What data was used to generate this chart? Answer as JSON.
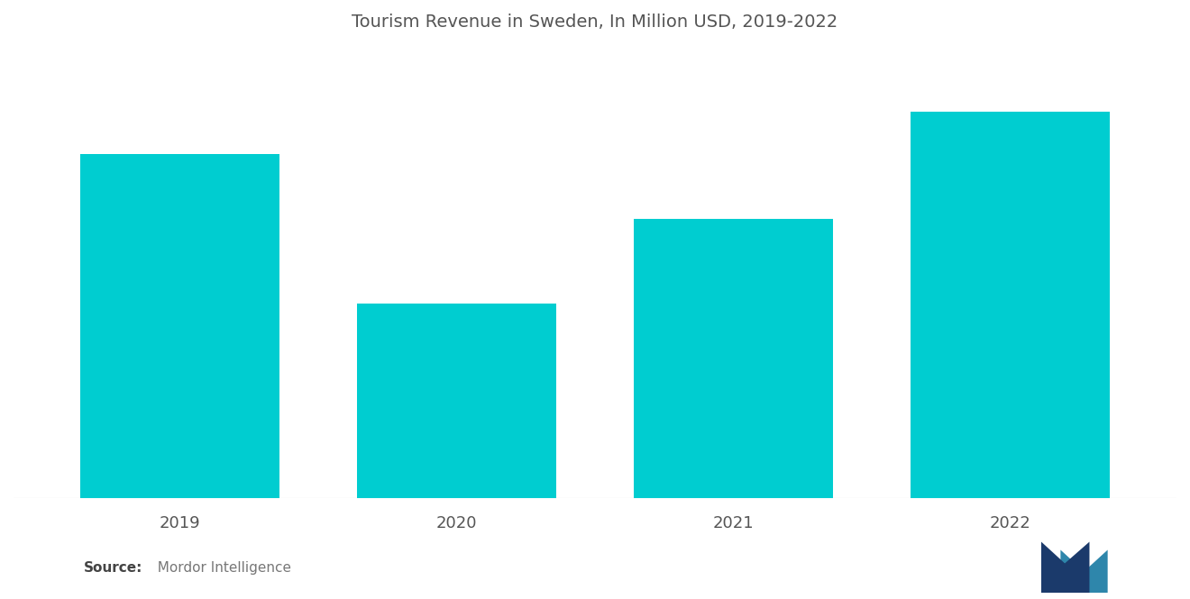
{
  "title": "Tourism Revenue in Sweden, In Million USD, 2019-2022",
  "categories": [
    "2019",
    "2020",
    "2021",
    "2022"
  ],
  "values": [
    13800,
    7800,
    11200,
    15500
  ],
  "bar_color": "#00CDD0",
  "background_color": "#FFFFFF",
  "title_fontsize": 14,
  "tick_label_fontsize": 13,
  "tick_label_color": "#555555",
  "source_bold": "Source:",
  "source_text": "  Mordor Intelligence",
  "source_fontsize": 11,
  "source_color": "#777777",
  "ylim": [
    0,
    18000
  ],
  "bar_width": 0.72
}
